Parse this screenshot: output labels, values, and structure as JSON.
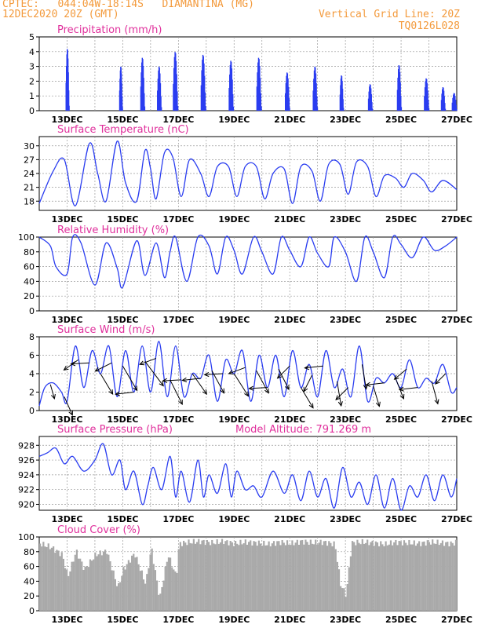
{
  "header": {
    "line1": "CPTEC:   044:04W-18:14S   DIAMANTINA (MG)",
    "line2": "12DEC2020 20Z (GMT)",
    "grid_note": "Vertical Grid Line: 20Z",
    "code": "TQ0126L028"
  },
  "colors": {
    "header": "#f39a3c",
    "title": "#e0309c",
    "series": "#2a3df0",
    "cloud": "#a9a9a9",
    "grid": "#9a9a9a"
  },
  "x_ticks": [
    "13DEC",
    "15DEC",
    "17DEC",
    "19DEC",
    "21DEC",
    "23DEC",
    "25DEC",
    "27DEC"
  ],
  "chart_data": [
    {
      "type": "bar",
      "title": "Precipitation (mm/h)",
      "ylim": [
        0,
        5
      ],
      "yticks": [
        0,
        1,
        2,
        3,
        4,
        5
      ],
      "x_unit": "days after 12DEC2020 20Z",
      "events": [
        {
          "t": 1.0,
          "w": 0.11,
          "v": 4.2
        },
        {
          "t": 2.92,
          "w": 0.1,
          "v": 3.0
        },
        {
          "t": 3.7,
          "w": 0.14,
          "v": 3.6
        },
        {
          "t": 4.3,
          "w": 0.14,
          "v": 3.0
        },
        {
          "t": 4.88,
          "w": 0.16,
          "v": 4.0
        },
        {
          "t": 5.88,
          "w": 0.16,
          "v": 3.8
        },
        {
          "t": 6.88,
          "w": 0.15,
          "v": 3.4
        },
        {
          "t": 7.88,
          "w": 0.16,
          "v": 3.6
        },
        {
          "t": 8.9,
          "w": 0.15,
          "v": 2.6
        },
        {
          "t": 9.9,
          "w": 0.15,
          "v": 3.0
        },
        {
          "t": 10.85,
          "w": 0.12,
          "v": 2.4
        },
        {
          "t": 11.88,
          "w": 0.14,
          "v": 1.8
        },
        {
          "t": 12.92,
          "w": 0.14,
          "v": 3.1
        },
        {
          "t": 13.9,
          "w": 0.16,
          "v": 2.2
        },
        {
          "t": 14.5,
          "w": 0.14,
          "v": 1.6
        },
        {
          "t": 14.9,
          "w": 0.16,
          "v": 1.2
        }
      ]
    },
    {
      "type": "line",
      "title": "Surface Temperature (nC)",
      "ylim": [
        16,
        32
      ],
      "yticks": [
        18,
        21,
        24,
        27,
        30
      ],
      "x": [
        0,
        0.5,
        0.9,
        1.3,
        1.8,
        2.1,
        2.4,
        2.8,
        3.1,
        3.5,
        3.8,
        4.0,
        4.2,
        4.5,
        4.8,
        5.1,
        5.4,
        5.8,
        6.1,
        6.4,
        6.8,
        7.1,
        7.4,
        7.8,
        8.1,
        8.4,
        8.8,
        9.1,
        9.4,
        9.8,
        10.1,
        10.4,
        10.8,
        11.1,
        11.4,
        11.8,
        12.1,
        12.4,
        12.8,
        13.1,
        13.4,
        13.8,
        14.1,
        14.5,
        15.0
      ],
      "values": [
        17.5,
        24.5,
        27.0,
        17.0,
        30.5,
        24.0,
        18.0,
        31.0,
        22.0,
        18.0,
        29.0,
        25.0,
        18.5,
        28.5,
        27.5,
        19.0,
        27.0,
        24.0,
        19.0,
        25.5,
        25.5,
        19.0,
        25.5,
        25.5,
        18.5,
        24.0,
        25.0,
        17.5,
        25.5,
        24.5,
        18.0,
        26.0,
        26.0,
        19.5,
        26.5,
        25.5,
        19.0,
        23.5,
        23.0,
        21.0,
        24.0,
        22.5,
        20.0,
        22.5,
        20.5
      ]
    },
    {
      "type": "line",
      "title": "Relative Humidity (%)",
      "ylim": [
        0,
        100
      ],
      "yticks": [
        0,
        20,
        40,
        60,
        80,
        100
      ],
      "x": [
        0,
        0.4,
        0.6,
        1.0,
        1.2,
        1.5,
        2.0,
        2.4,
        2.8,
        3.0,
        3.5,
        3.8,
        4.2,
        4.5,
        4.7,
        4.9,
        5.3,
        5.7,
        6.1,
        6.4,
        6.7,
        7.0,
        7.3,
        7.7,
        8.0,
        8.4,
        8.7,
        9.0,
        9.4,
        9.7,
        10.0,
        10.4,
        10.6,
        11.0,
        11.4,
        11.7,
        12.0,
        12.4,
        12.7,
        13.0,
        13.4,
        13.8,
        14.2,
        14.6,
        15.0
      ],
      "values": [
        100,
        88,
        60,
        50,
        100,
        92,
        35,
        92,
        58,
        32,
        95,
        48,
        92,
        45,
        80,
        100,
        40,
        100,
        88,
        50,
        100,
        82,
        50,
        100,
        80,
        50,
        100,
        82,
        60,
        100,
        78,
        60,
        100,
        80,
        40,
        100,
        80,
        45,
        100,
        90,
        72,
        100,
        82,
        88,
        100
      ]
    },
    {
      "type": "line",
      "title": "Surface Wind (m/s)",
      "ylim": [
        0,
        8
      ],
      "yticks": [
        0,
        2,
        4,
        6,
        8
      ],
      "x": [
        0,
        0.2,
        0.5,
        0.8,
        1.0,
        1.3,
        1.6,
        1.9,
        2.2,
        2.5,
        2.8,
        3.1,
        3.4,
        3.7,
        4.0,
        4.3,
        4.6,
        4.9,
        5.2,
        5.5,
        5.8,
        6.1,
        6.4,
        6.7,
        7.0,
        7.3,
        7.6,
        7.9,
        8.2,
        8.5,
        8.8,
        9.1,
        9.4,
        9.7,
        10.0,
        10.3,
        10.6,
        10.9,
        11.2,
        11.5,
        11.8,
        12.1,
        12.4,
        12.7,
        13.0,
        13.3,
        13.6,
        13.9,
        14.2,
        14.5,
        14.8,
        15.0
      ],
      "values": [
        0.5,
        2.5,
        3.0,
        2.0,
        1.0,
        7.0,
        2.5,
        6.5,
        4.0,
        7.0,
        1.5,
        6.5,
        2.0,
        7.0,
        2.0,
        7.5,
        1.5,
        7.0,
        1.5,
        4.0,
        3.5,
        6.0,
        1.0,
        5.5,
        4.0,
        6.5,
        1.0,
        6.0,
        2.5,
        6.0,
        1.5,
        6.5,
        2.5,
        5.0,
        1.5,
        6.5,
        2.5,
        4.5,
        1.5,
        7.0,
        1.0,
        3.5,
        3.0,
        4.0,
        2.5,
        5.5,
        2.5,
        3.5,
        3.0,
        5.0,
        2.0,
        2.5
      ],
      "arrows": [
        {
          "t": 0.4,
          "dx": 0.2,
          "dy": 0.7
        },
        {
          "t": 0.9,
          "dx": 0.4,
          "dy": 0.9
        },
        {
          "t": 1.4,
          "dx": -0.7,
          "dy": 0.5
        },
        {
          "t": 1.8,
          "dx": -0.9,
          "dy": 0.05
        },
        {
          "t": 2.2,
          "dx": 0.6,
          "dy": 1.0
        },
        {
          "t": 2.6,
          "dx": -0.8,
          "dy": 0.4
        },
        {
          "t": 3.0,
          "dx": 0.7,
          "dy": 1.2
        },
        {
          "t": 3.4,
          "dx": -0.9,
          "dy": 0.1
        },
        {
          "t": 3.8,
          "dx": 0.9,
          "dy": 1.2
        },
        {
          "t": 4.2,
          "dx": -0.8,
          "dy": 0.3
        },
        {
          "t": 4.7,
          "dx": 0.6,
          "dy": 1.2
        },
        {
          "t": 5.1,
          "dx": -0.9,
          "dy": 0.05
        },
        {
          "t": 5.5,
          "dx": 0.7,
          "dy": 1.0
        },
        {
          "t": 5.8,
          "dx": -0.9,
          "dy": 0.1
        },
        {
          "t": 6.2,
          "dx": 0.6,
          "dy": 1.1
        },
        {
          "t": 6.6,
          "dx": -0.9,
          "dy": 0.05
        },
        {
          "t": 7.0,
          "dx": 0.7,
          "dy": 1.1
        },
        {
          "t": 7.4,
          "dx": -0.8,
          "dy": 0.3
        },
        {
          "t": 7.8,
          "dx": 0.6,
          "dy": 1.1
        },
        {
          "t": 8.2,
          "dx": -0.9,
          "dy": 0.05
        },
        {
          "t": 8.6,
          "dx": 0.5,
          "dy": 1.0
        },
        {
          "t": 9.0,
          "dx": -0.6,
          "dy": 0.6
        },
        {
          "t": 9.4,
          "dx": 0.6,
          "dy": 1.0
        },
        {
          "t": 9.8,
          "dx": -0.4,
          "dy": 0.8
        },
        {
          "t": 10.2,
          "dx": -0.9,
          "dy": 0.1
        },
        {
          "t": 10.7,
          "dx": 0.2,
          "dy": 1.2
        },
        {
          "t": 11.1,
          "dx": -0.6,
          "dy": 0.6
        },
        {
          "t": 11.6,
          "dx": 0.2,
          "dy": 1.2
        },
        {
          "t": 12.0,
          "dx": 0.3,
          "dy": 1.0
        },
        {
          "t": 12.4,
          "dx": -0.9,
          "dy": 0.1
        },
        {
          "t": 12.8,
          "dx": 0.4,
          "dy": 1.0
        },
        {
          "t": 13.2,
          "dx": -0.6,
          "dy": 0.5
        },
        {
          "t": 13.6,
          "dx": -0.9,
          "dy": 0.1
        },
        {
          "t": 14.1,
          "dx": 0.3,
          "dy": 1.1
        },
        {
          "t": 14.6,
          "dx": -0.5,
          "dy": 0.5
        }
      ]
    },
    {
      "type": "line",
      "title": "Surface Pressure (hPa)",
      "annotation": "Model Altitude:  791.269  m",
      "ylim": [
        919.2,
        929.2
      ],
      "yticks": [
        920,
        922,
        924,
        926,
        928
      ],
      "x": [
        0,
        0.3,
        0.6,
        0.9,
        1.2,
        1.6,
        2.0,
        2.3,
        2.6,
        2.9,
        3.1,
        3.4,
        3.7,
        3.9,
        4.1,
        4.4,
        4.7,
        4.9,
        5.1,
        5.4,
        5.7,
        5.9,
        6.1,
        6.4,
        6.7,
        6.9,
        7.1,
        7.4,
        7.7,
        8.0,
        8.4,
        8.8,
        9.1,
        9.4,
        9.7,
        10.0,
        10.3,
        10.6,
        10.9,
        11.2,
        11.5,
        11.8,
        12.1,
        12.4,
        12.7,
        13.0,
        13.3,
        13.6,
        13.9,
        14.2,
        14.5,
        14.8,
        15.0
      ],
      "values": [
        926.5,
        927.0,
        927.6,
        925.5,
        926.5,
        924.5,
        926.0,
        928.2,
        924.0,
        926.0,
        922.0,
        924.5,
        920.0,
        922.5,
        925.0,
        922.0,
        926.5,
        921.0,
        924.5,
        920.3,
        926.0,
        921.0,
        924.0,
        921.5,
        925.5,
        921.0,
        924.5,
        922.0,
        922.5,
        921.0,
        924.5,
        921.5,
        924.0,
        920.5,
        924.5,
        921.0,
        923.5,
        919.5,
        925.0,
        921.0,
        923.0,
        920.0,
        924.0,
        919.5,
        923.5,
        919.2,
        922.5,
        921.0,
        924.0,
        920.5,
        924.0,
        921.0,
        923.5
      ]
    },
    {
      "type": "area",
      "title": "Cloud Cover (%)",
      "ylim": [
        0,
        100
      ],
      "yticks": [
        0,
        20,
        40,
        60,
        80,
        100
      ],
      "x": [
        0,
        0.4,
        0.8,
        1.0,
        1.3,
        1.6,
        2.0,
        2.4,
        2.8,
        3.0,
        3.4,
        3.8,
        4.0,
        4.3,
        4.6,
        4.9,
        5.0,
        5.4,
        5.8,
        6.2,
        6.6,
        7.0,
        7.4,
        7.8,
        8.2,
        8.6,
        9.0,
        9.4,
        9.8,
        10.2,
        10.6,
        10.8,
        11.0,
        11.2,
        11.6,
        12.0,
        12.4,
        12.8,
        13.2,
        13.6,
        14.0,
        14.4,
        14.8,
        15.0
      ],
      "values": [
        95,
        90,
        80,
        50,
        85,
        60,
        80,
        85,
        35,
        60,
        82,
        40,
        90,
        20,
        80,
        50,
        95,
        97,
        98,
        96,
        98,
        95,
        97,
        96,
        94,
        97,
        95,
        98,
        96,
        97,
        94,
        40,
        25,
        96,
        97,
        96,
        94,
        97,
        96,
        95,
        97,
        96,
        95,
        97
      ]
    }
  ]
}
